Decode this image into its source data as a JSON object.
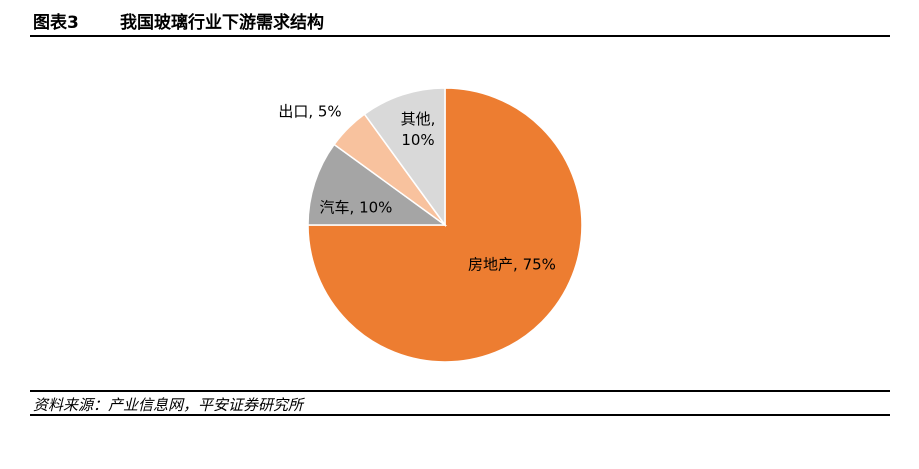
{
  "chart_data": {
    "type": "pie",
    "figure_label": "图表3",
    "title": "我国玻璃行业下游需求结构",
    "labels": [
      "房地产, 75%",
      "汽车, 10%",
      "出口, 5%",
      "其他,\n10%"
    ],
    "values": [
      75,
      10,
      5,
      10
    ],
    "colors": [
      "#ED7D31",
      "#A5A5A5",
      "#F8C29E",
      "#D9D9D9"
    ],
    "source": "资料来源：产业信息网，平安证券研究所"
  }
}
